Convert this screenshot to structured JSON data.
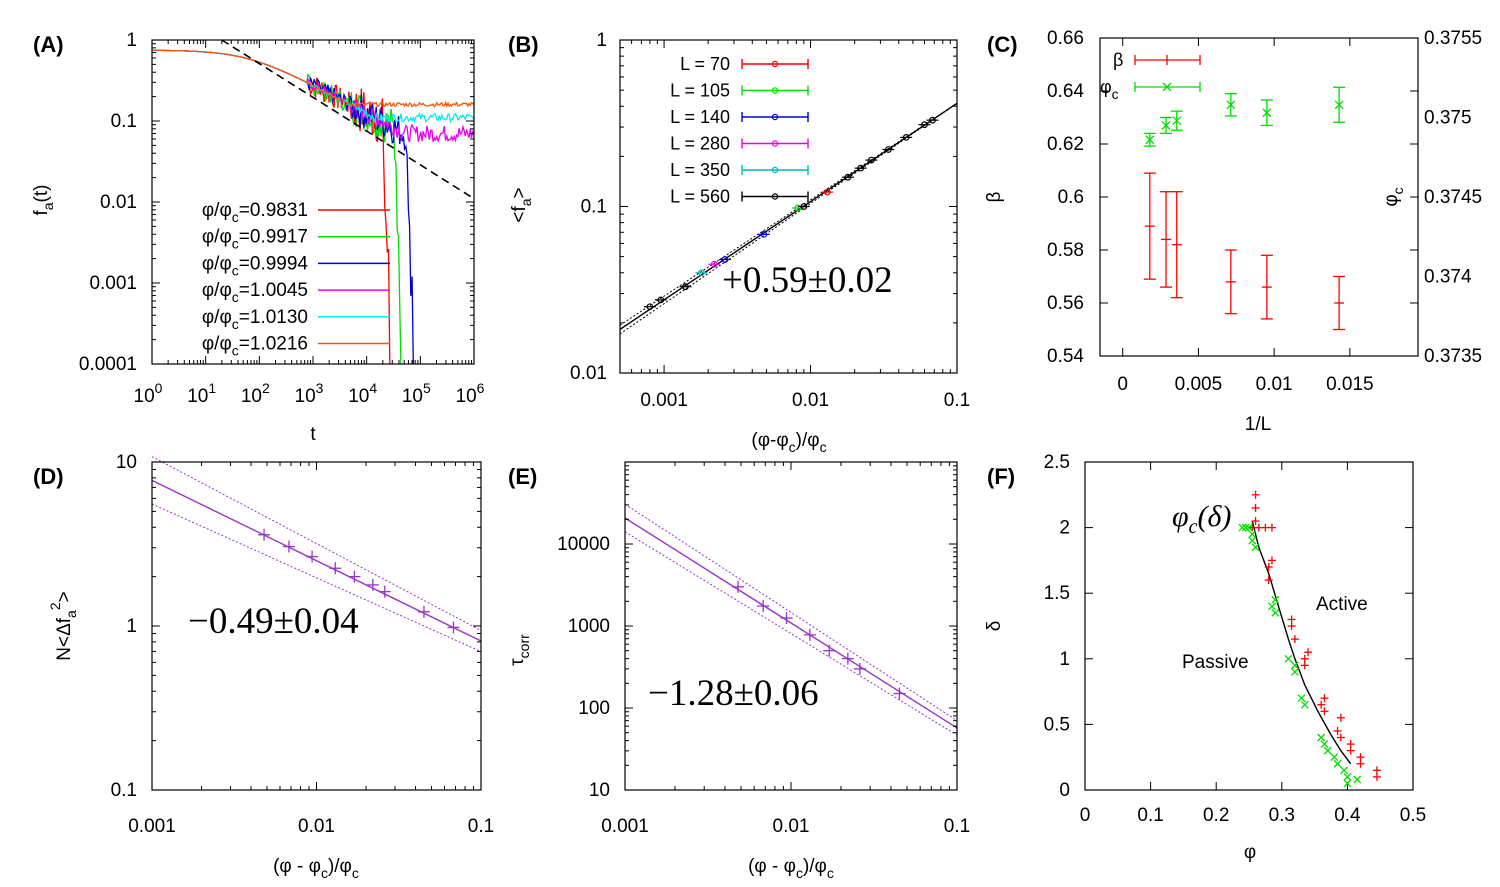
{
  "colors": {
    "red": "#ff0000",
    "green": "#00dd00",
    "blue": "#0000dd",
    "magenta": "#ee00ee",
    "cyan": "#00eeee",
    "orange": "#ff5500",
    "black": "#000000",
    "purple": "#9933cc"
  },
  "chart_data": [
    {
      "panel": "(A)",
      "type": "line",
      "xscale": "log",
      "yscale": "log",
      "xlim": [
        1,
        1000000
      ],
      "ylim": [
        0.0001,
        1
      ],
      "xticks": [
        {
          "v": 1,
          "b": "10",
          "e": "0"
        },
        {
          "v": 10,
          "b": "10",
          "e": "1"
        },
        {
          "v": 100,
          "b": "10",
          "e": "2"
        },
        {
          "v": 1000,
          "b": "10",
          "e": "3"
        },
        {
          "v": 10000,
          "b": "10",
          "e": "4"
        },
        {
          "v": 100000,
          "b": "10",
          "e": "5"
        },
        {
          "v": 1000000,
          "b": "10",
          "e": "6"
        }
      ],
      "yticks": [
        {
          "v": 1,
          "t": "1"
        },
        {
          "v": 0.1,
          "t": "0.1"
        },
        {
          "v": 0.01,
          "t": "0.01"
        },
        {
          "v": 0.001,
          "t": "0.001"
        },
        {
          "v": 0.0001,
          "t": "0.0001"
        }
      ],
      "xlabel": "t",
      "ylabel": {
        "base": "f",
        "sub": "a",
        "tail": "(t)"
      },
      "legend": [
        {
          "sym": "φ/φ",
          "sub": "c",
          "val": "=0.9831",
          "color": "#ff0000"
        },
        {
          "sym": "φ/φ",
          "sub": "c",
          "val": "=0.9917",
          "color": "#00dd00"
        },
        {
          "sym": "φ/φ",
          "sub": "c",
          "val": "=0.9994",
          "color": "#0000dd"
        },
        {
          "sym": "φ/φ",
          "sub": "c",
          "val": "=1.0045",
          "color": "#ee00ee"
        },
        {
          "sym": "φ/φ",
          "sub": "c",
          "val": "=1.0130",
          "color": "#00eeee"
        },
        {
          "sym": "φ/φ",
          "sub": "c",
          "val": "=1.0216",
          "color": "#ff5500"
        }
      ],
      "series": [
        {
          "name": "0.9831",
          "color": "#ff0000",
          "plateau": null,
          "tdie": 28000,
          "noise": 0.45
        },
        {
          "name": "0.9917",
          "color": "#00dd00",
          "plateau": null,
          "tdie": 45000,
          "noise": 0.35
        },
        {
          "name": "0.9994",
          "color": "#0000dd",
          "plateau": null,
          "tdie": 78000,
          "noise": 0.3
        },
        {
          "name": "1.0045",
          "color": "#ee00ee",
          "plateau": 0.07,
          "tdie": null,
          "noise": 0.25
        },
        {
          "name": "1.0130",
          "color": "#00eeee",
          "plateau": 0.11,
          "tdie": null,
          "noise": 0.12
        },
        {
          "name": "1.0216",
          "color": "#ff5500",
          "plateau": 0.16,
          "tdie": null,
          "noise": 0.06
        }
      ],
      "guide_line": {
        "x": [
          20,
          1000000
        ],
        "y": [
          1,
          0.011
        ],
        "style": "dashed"
      }
    },
    {
      "panel": "(B)",
      "type": "scatter",
      "xscale": "log",
      "yscale": "log",
      "xlim": [
        0.0005,
        0.1
      ],
      "ylim": [
        0.01,
        1
      ],
      "xticks": [
        {
          "v": 0.001,
          "t": "0.001"
        },
        {
          "v": 0.01,
          "t": "0.01"
        },
        {
          "v": 0.1,
          "t": "0.1"
        }
      ],
      "yticks": [
        {
          "v": 1,
          "t": "1"
        },
        {
          "v": 0.1,
          "t": "0.1"
        },
        {
          "v": 0.01,
          "t": "0.01"
        }
      ],
      "xlabel": {
        "pre": "(φ-φ",
        "sub": "c",
        "mid": ")/φ",
        "sub2": "c"
      },
      "ylabel": {
        "pre": "<f",
        "sub": "a",
        "post": ">"
      },
      "annotation": "+0.59±0.02",
      "fit": {
        "slope": 0.59,
        "amp": 1.62
      },
      "legend": [
        {
          "label": "L = 70",
          "color": "#ff0000"
        },
        {
          "label": "L = 105",
          "color": "#00dd00"
        },
        {
          "label": "L = 140",
          "color": "#0000dd"
        },
        {
          "label": "L = 280",
          "color": "#ee00ee"
        },
        {
          "label": "L = 350",
          "color": "#00bbbb"
        },
        {
          "label": "L = 560",
          "color": "#000000"
        }
      ],
      "points": [
        {
          "x": 0.0008,
          "y": 0.025,
          "c": "#000000"
        },
        {
          "x": 0.00095,
          "y": 0.0275,
          "c": "#000000"
        },
        {
          "x": 0.0014,
          "y": 0.033,
          "c": "#000000"
        },
        {
          "x": 0.0018,
          "y": 0.04,
          "c": "#00bbbb"
        },
        {
          "x": 0.0022,
          "y": 0.045,
          "c": "#ee00ee"
        },
        {
          "x": 0.0026,
          "y": 0.048,
          "c": "#0000dd"
        },
        {
          "x": 0.0048,
          "y": 0.068,
          "c": "#0000dd"
        },
        {
          "x": 0.0082,
          "y": 0.098,
          "c": "#00dd00"
        },
        {
          "x": 0.009,
          "y": 0.1,
          "c": "#000000"
        },
        {
          "x": 0.013,
          "y": 0.122,
          "c": "#ff0000"
        },
        {
          "x": 0.018,
          "y": 0.15,
          "c": "#000000"
        },
        {
          "x": 0.022,
          "y": 0.17,
          "c": "#000000"
        },
        {
          "x": 0.026,
          "y": 0.19,
          "c": "#000000"
        },
        {
          "x": 0.034,
          "y": 0.22,
          "c": "#000000"
        },
        {
          "x": 0.045,
          "y": 0.26,
          "c": "#000000"
        },
        {
          "x": 0.06,
          "y": 0.31,
          "c": "#000000"
        },
        {
          "x": 0.068,
          "y": 0.33,
          "c": "#000000"
        }
      ]
    },
    {
      "panel": "(C)",
      "type": "scatter",
      "xlim": [
        -0.0015,
        0.0195
      ],
      "ylim": [
        0.54,
        0.66
      ],
      "y2lim": [
        0.3735,
        0.3755
      ],
      "xticks": [
        {
          "v": 0,
          "t": "0"
        },
        {
          "v": 0.005,
          "t": "0.005"
        },
        {
          "v": 0.01,
          "t": "0.01"
        },
        {
          "v": 0.015,
          "t": "0.015"
        }
      ],
      "yticks": [
        {
          "v": 0.54,
          "t": "0.54"
        },
        {
          "v": 0.56,
          "t": "0.56"
        },
        {
          "v": 0.58,
          "t": "0.58"
        },
        {
          "v": 0.6,
          "t": "0.6"
        },
        {
          "v": 0.62,
          "t": "0.62"
        },
        {
          "v": 0.64,
          "t": "0.64"
        },
        {
          "v": 0.66,
          "t": "0.66"
        }
      ],
      "y2ticks": [
        {
          "v": 0.3735,
          "t": "0.3735"
        },
        {
          "v": 0.374,
          "t": "0.374"
        },
        {
          "v": 0.3745,
          "t": "0.3745"
        },
        {
          "v": 0.375,
          "t": "0.375"
        },
        {
          "v": 0.3755,
          "t": "0.3755"
        }
      ],
      "xlabel": "1/L",
      "ylabel": "β",
      "y2label": {
        "base": "φ",
        "sub": "c"
      },
      "legend": [
        {
          "label": "β",
          "color": "#ff0000"
        },
        {
          "label": "φ",
          "sub": "c",
          "color": "#00dd00"
        }
      ],
      "beta": [
        {
          "x": 0.00179,
          "y": 0.589,
          "err": 0.02
        },
        {
          "x": 0.00286,
          "y": 0.584,
          "err": 0.018
        },
        {
          "x": 0.00357,
          "y": 0.582,
          "err": 0.02
        },
        {
          "x": 0.00714,
          "y": 0.568,
          "err": 0.012
        },
        {
          "x": 0.00952,
          "y": 0.566,
          "err": 0.012
        },
        {
          "x": 0.01429,
          "y": 0.56,
          "err": 0.01
        }
      ],
      "phic": [
        {
          "x": 0.00179,
          "y": 0.37486,
          "err": 4e-05
        },
        {
          "x": 0.00286,
          "y": 0.37495,
          "err": 5e-05
        },
        {
          "x": 0.00357,
          "y": 0.37498,
          "err": 6e-05
        },
        {
          "x": 0.00714,
          "y": 0.37508,
          "err": 7e-05
        },
        {
          "x": 0.00952,
          "y": 0.37503,
          "err": 8e-05
        },
        {
          "x": 0.01429,
          "y": 0.37508,
          "err": 0.00011
        }
      ]
    },
    {
      "panel": "(D)",
      "type": "scatter",
      "xscale": "log",
      "yscale": "log",
      "xlim": [
        0.001,
        0.1
      ],
      "ylim": [
        0.1,
        10
      ],
      "xticks": [
        {
          "v": 0.001,
          "t": "0.001"
        },
        {
          "v": 0.01,
          "t": "0.01"
        },
        {
          "v": 0.1,
          "t": "0.1"
        }
      ],
      "yticks": [
        {
          "v": 10,
          "t": "10"
        },
        {
          "v": 1,
          "t": "1"
        },
        {
          "v": 0.1,
          "t": "0.1"
        }
      ],
      "xlabel": {
        "pre": "(φ - φ",
        "sub": "c",
        "mid": ")/φ",
        "sub2": "c"
      },
      "ylabel": {
        "pre": "N<Δf",
        "sub": "a",
        "sup": "2",
        "post": ">"
      },
      "annotation": "−0.49±0.04",
      "fit": {
        "slope": -0.49,
        "amp": 0.262
      },
      "points": [
        {
          "x": 0.0048,
          "y": 3.6
        },
        {
          "x": 0.0068,
          "y": 3.05
        },
        {
          "x": 0.0094,
          "y": 2.65
        },
        {
          "x": 0.013,
          "y": 2.25
        },
        {
          "x": 0.017,
          "y": 2.0
        },
        {
          "x": 0.022,
          "y": 1.78
        },
        {
          "x": 0.026,
          "y": 1.62
        },
        {
          "x": 0.045,
          "y": 1.22
        },
        {
          "x": 0.068,
          "y": 0.98
        }
      ]
    },
    {
      "panel": "(E)",
      "type": "scatter",
      "xscale": "log",
      "yscale": "log",
      "xlim": [
        0.001,
        0.1
      ],
      "ylim": [
        10,
        100000
      ],
      "xticks": [
        {
          "v": 0.001,
          "t": "0.001"
        },
        {
          "v": 0.01,
          "t": "0.01"
        },
        {
          "v": 0.1,
          "t": "0.1"
        }
      ],
      "yticks": [
        {
          "v": 10000,
          "t": "10000"
        },
        {
          "v": 1000,
          "t": "1000"
        },
        {
          "v": 100,
          "t": "100"
        },
        {
          "v": 10,
          "t": "10"
        }
      ],
      "xlabel": {
        "pre": "(φ - φ",
        "sub": "c",
        "mid": ")/φ",
        "sub2": "c"
      },
      "ylabel": {
        "base": "τ",
        "sub": "corr"
      },
      "annotation": "−1.28±0.06",
      "fit": {
        "slope": -1.28,
        "amp": 3.0
      },
      "points": [
        {
          "x": 0.0048,
          "y": 3000
        },
        {
          "x": 0.0068,
          "y": 1750
        },
        {
          "x": 0.0094,
          "y": 1250
        },
        {
          "x": 0.013,
          "y": 780
        },
        {
          "x": 0.017,
          "y": 500
        },
        {
          "x": 0.022,
          "y": 400
        },
        {
          "x": 0.026,
          "y": 300
        },
        {
          "x": 0.045,
          "y": 150
        }
      ]
    },
    {
      "panel": "(F)",
      "type": "scatter",
      "xlim": [
        0,
        0.5
      ],
      "ylim": [
        0,
        2.5
      ],
      "xticks": [
        {
          "v": 0,
          "t": "0"
        },
        {
          "v": 0.1,
          "t": "0.1"
        },
        {
          "v": 0.2,
          "t": "0.2"
        },
        {
          "v": 0.3,
          "t": "0.3"
        },
        {
          "v": 0.4,
          "t": "0.4"
        },
        {
          "v": 0.5,
          "t": "0.5"
        }
      ],
      "yticks": [
        {
          "v": 0,
          "t": "0"
        },
        {
          "v": 0.5,
          "t": "0.5"
        },
        {
          "v": 1,
          "t": "1"
        },
        {
          "v": 1.5,
          "t": "1.5"
        },
        {
          "v": 2,
          "t": "2"
        },
        {
          "v": 2.5,
          "t": "2.5"
        }
      ],
      "xlabel": "φ",
      "ylabel": "δ",
      "curve_label": "φ",
      "curve_label_sub": "c",
      "curve_label_arg": "(δ)",
      "region_active": "Active",
      "region_passive": "Passive",
      "curve": [
        [
          0.255,
          2.05
        ],
        [
          0.265,
          1.85
        ],
        [
          0.28,
          1.65
        ],
        [
          0.295,
          1.4
        ],
        [
          0.31,
          1.15
        ],
        [
          0.32,
          1.0
        ],
        [
          0.335,
          0.8
        ],
        [
          0.355,
          0.6
        ],
        [
          0.375,
          0.42
        ],
        [
          0.39,
          0.3
        ],
        [
          0.405,
          0.2
        ]
      ],
      "active": [
        [
          0.26,
          2.05
        ],
        [
          0.26,
          2.15
        ],
        [
          0.26,
          2.25
        ],
        [
          0.255,
          2.0
        ],
        [
          0.265,
          2.0
        ],
        [
          0.275,
          2.0
        ],
        [
          0.285,
          2.0
        ],
        [
          0.28,
          1.6
        ],
        [
          0.28,
          1.7
        ],
        [
          0.285,
          1.75
        ],
        [
          0.315,
          1.25
        ],
        [
          0.32,
          1.15
        ],
        [
          0.315,
          1.3
        ],
        [
          0.335,
          0.95
        ],
        [
          0.34,
          1.05
        ],
        [
          0.335,
          1.0
        ],
        [
          0.36,
          0.65
        ],
        [
          0.365,
          0.7
        ],
        [
          0.365,
          0.6
        ],
        [
          0.385,
          0.45
        ],
        [
          0.39,
          0.55
        ],
        [
          0.39,
          0.4
        ],
        [
          0.405,
          0.3
        ],
        [
          0.405,
          0.35
        ],
        [
          0.42,
          0.25
        ],
        [
          0.42,
          0.2
        ],
        [
          0.445,
          0.1
        ],
        [
          0.445,
          0.15
        ]
      ],
      "passive": [
        [
          0.24,
          2.0
        ],
        [
          0.245,
          2.0
        ],
        [
          0.25,
          2.0
        ],
        [
          0.255,
          1.95
        ],
        [
          0.255,
          1.9
        ],
        [
          0.26,
          1.85
        ],
        [
          0.285,
          1.4
        ],
        [
          0.29,
          1.45
        ],
        [
          0.29,
          1.35
        ],
        [
          0.31,
          1.0
        ],
        [
          0.32,
          0.9
        ],
        [
          0.32,
          0.95
        ],
        [
          0.33,
          0.7
        ],
        [
          0.335,
          0.65
        ],
        [
          0.36,
          0.4
        ],
        [
          0.365,
          0.35
        ],
        [
          0.37,
          0.3
        ],
        [
          0.38,
          0.25
        ],
        [
          0.385,
          0.2
        ],
        [
          0.395,
          0.15
        ],
        [
          0.4,
          0.1
        ],
        [
          0.4,
          0.05
        ],
        [
          0.415,
          0.08
        ]
      ]
    }
  ]
}
